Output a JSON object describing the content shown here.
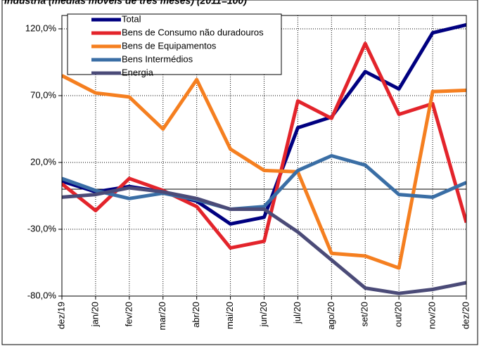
{
  "chart_data": {
    "type": "line",
    "title": "Indústria (médias móveis de três meses) (2011=100)",
    "categories": [
      "dez/19",
      "jan/20",
      "fev/20",
      "mar/20",
      "abr/20",
      "mai/20",
      "jun/20",
      "jul/20",
      "ago/20",
      "set/20",
      "out/20",
      "nov/20",
      "dez/20"
    ],
    "series": [
      {
        "name": "Total",
        "color": "#000080",
        "values": [
          6,
          -2,
          2,
          -2,
          -9,
          -26,
          -21,
          46,
          54,
          88,
          75,
          117,
          123
        ]
      },
      {
        "name": "Bens de Consumo não duradouros",
        "color": "#e3242b",
        "values": [
          4,
          -16,
          8,
          -1,
          -13,
          -44,
          -39,
          66,
          53,
          109,
          56,
          64,
          -25
        ]
      },
      {
        "name": "Bens de Equipamentos",
        "color": "#f57f20",
        "values": [
          85,
          72,
          69,
          45,
          82,
          30,
          14,
          13,
          -48,
          -50,
          -59,
          73,
          74
        ]
      },
      {
        "name": "Bens Intermédios",
        "color": "#3a6ea5",
        "values": [
          8,
          -1,
          -7,
          -3,
          -8,
          -15,
          -13,
          14,
          25,
          18,
          -4,
          -6,
          5
        ]
      },
      {
        "name": "Energia",
        "color": "#4b4b78",
        "values": [
          -6,
          -4,
          1,
          -2,
          -7,
          -15,
          -15,
          -32,
          -53,
          -74,
          -78,
          -75,
          -70
        ]
      }
    ],
    "ylim": [
      -80,
      130
    ],
    "yticks": [
      {
        "value": -80,
        "label": "-80,0%"
      },
      {
        "value": -30,
        "label": "-30,0%"
      },
      {
        "value": 20,
        "label": "20,0%"
      },
      {
        "value": 70,
        "label": "70,0%"
      },
      {
        "value": 120,
        "label": "120,0%"
      }
    ],
    "grid": true
  }
}
